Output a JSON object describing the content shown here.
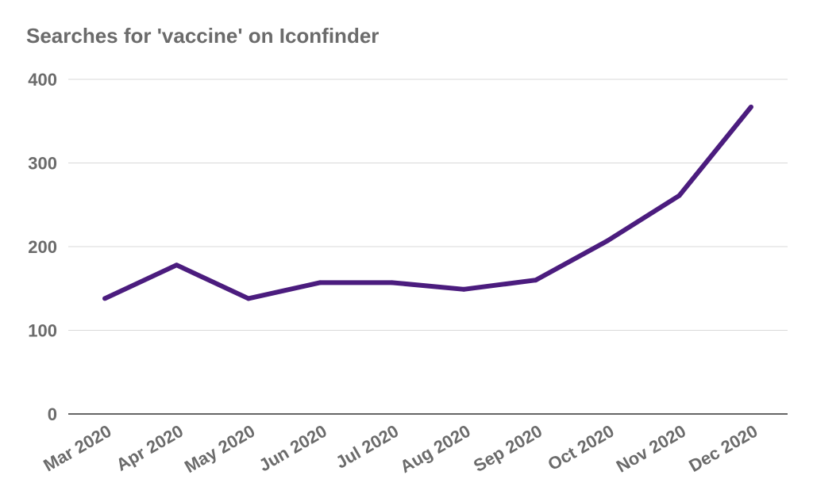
{
  "chart_data": {
    "type": "line",
    "title": "Searches for 'vaccine' on Iconfinder",
    "xlabel": "",
    "ylabel": "",
    "categories": [
      "Mar 2020",
      "Apr 2020",
      "May 2020",
      "Jun 2020",
      "Jul 2020",
      "Aug 2020",
      "Sep 2020",
      "Oct 2020",
      "Nov 2020",
      "Dec 2020"
    ],
    "series": [
      {
        "values": [
          138,
          178,
          138,
          157,
          157,
          149,
          160,
          207,
          261,
          367
        ]
      }
    ],
    "ylim": [
      0,
      400
    ],
    "yticks": [
      0,
      100,
      200,
      300,
      400
    ],
    "grid": true,
    "legend": "none",
    "colors": {
      "line": "#4b1c7e",
      "grid": "#d9d9d9",
      "axis": "#333333",
      "text": "#6b6b6b"
    }
  }
}
